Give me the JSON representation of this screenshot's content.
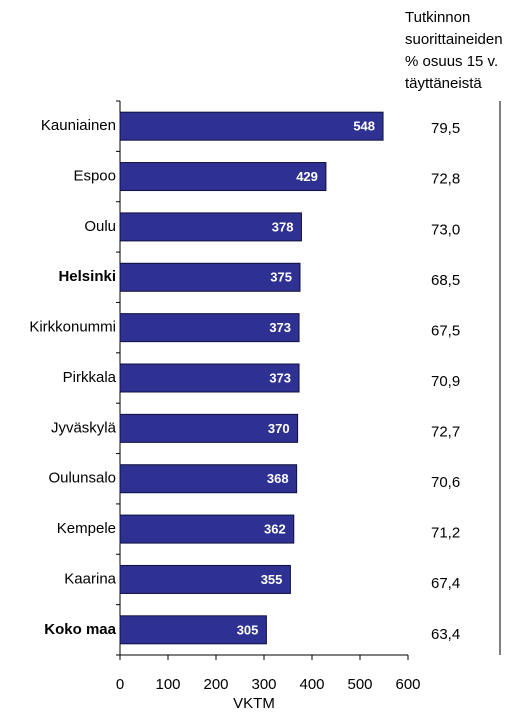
{
  "chart_data": {
    "type": "bar",
    "orientation": "horizontal",
    "x_label": "VKTM",
    "categories": [
      "Kauniainen",
      "Espoo",
      "Oulu",
      "Helsinki",
      "Kirkkonummi",
      "Pirkkala",
      "Jyväskylä",
      "Oulunsalo",
      "Kempele",
      "Kaarina",
      "Koko maa"
    ],
    "bold": [
      false,
      false,
      false,
      true,
      false,
      false,
      false,
      false,
      false,
      false,
      true
    ],
    "values": [
      548,
      429,
      378,
      375,
      373,
      373,
      370,
      368,
      362,
      355,
      305
    ],
    "color": "#2e3192",
    "xlim": [
      0,
      600
    ],
    "xticks": [
      0,
      100,
      200,
      300,
      400,
      500,
      600
    ],
    "right_header": [
      "Tutkinnon",
      "suorittaineiden",
      "% osuus 15 v.",
      "täyttäneistä"
    ],
    "right_values": [
      "79,5",
      "72,8",
      "73,0",
      "68,5",
      "67,5",
      "70,9",
      "72,7",
      "70,6",
      "71,2",
      "67,4",
      "63,4"
    ]
  }
}
